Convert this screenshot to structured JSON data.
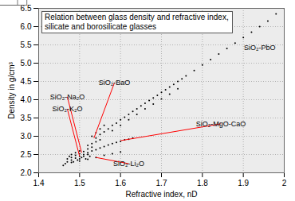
{
  "chart_data": {
    "type": "scatter",
    "title": "Relation between glass density and refractive index, silicate and borosilicate glasses",
    "x_label": "Refractive index, nD",
    "y_label": "Density in g/cm³",
    "color": "#000000",
    "xlim": [
      1.4,
      2
    ],
    "ylim": [
      2,
      6.5
    ],
    "xticks": [
      1.4,
      1.5,
      1.6,
      1.7,
      1.8,
      1.9,
      2
    ],
    "yticks": [
      {
        "value": 2,
        "label": "2.0"
      },
      2.5,
      {
        "value": 3,
        "label": "3.0"
      },
      3.5,
      {
        "value": 4,
        "label": "4.0"
      },
      4.5,
      {
        "value": 5,
        "label": "5.0"
      },
      5.5,
      {
        "value": 6,
        "label": "6.0"
      },
      6.5
    ],
    "grid": true,
    "x": [
      1.55,
      1.56,
      1.57,
      1.58,
      1.59,
      1.6,
      1.61,
      1.62,
      1.63,
      1.64,
      1.65,
      1.66,
      1.67,
      1.68,
      1.69,
      1.7,
      1.71,
      1.72,
      1.73,
      1.74,
      1.75,
      1.76,
      1.78,
      1.8,
      1.82,
      1.84,
      1.86,
      1.88,
      1.9,
      1.92,
      1.94,
      1.96,
      1.98,
      2.0,
      1.58,
      1.6,
      1.62,
      1.64,
      1.66,
      1.68,
      1.7,
      1.72,
      1.74,
      1.5,
      1.51,
      1.52,
      1.53,
      1.54,
      1.55,
      1.56,
      1.57,
      1.58,
      1.59,
      1.6,
      1.61,
      1.62,
      1.63,
      1.48,
      1.5,
      1.52,
      1.54,
      1.56,
      1.58,
      1.6,
      1.46,
      1.465,
      1.47,
      1.47,
      1.48,
      1.48,
      1.49,
      1.49,
      1.5,
      1.5,
      1.51,
      1.51,
      1.52,
      1.52,
      1.53,
      1.53,
      1.54,
      1.54,
      1.55,
      1.52,
      1.5,
      1.49,
      1.48,
      1.475,
      1.485,
      1.495,
      1.505,
      1.515,
      1.525,
      1.53,
      1.54,
      1.55,
      1.56
    ],
    "values": [
      3.05,
      3.12,
      3.2,
      3.3,
      3.36,
      3.45,
      3.52,
      3.6,
      3.68,
      3.75,
      3.83,
      3.9,
      3.98,
      4.05,
      4.12,
      4.2,
      4.27,
      4.35,
      4.42,
      4.5,
      4.57,
      4.65,
      4.8,
      4.95,
      5.1,
      5.25,
      5.4,
      5.55,
      5.7,
      5.85,
      6.0,
      6.15,
      6.35,
      6.5,
      3.15,
      3.3,
      3.45,
      3.6,
      3.75,
      3.88,
      4.02,
      4.15,
      4.3,
      2.45,
      2.5,
      2.55,
      2.6,
      2.63,
      2.68,
      2.72,
      2.76,
      2.8,
      2.83,
      2.86,
      2.9,
      2.92,
      2.95,
      2.28,
      2.32,
      2.37,
      2.42,
      2.48,
      2.52,
      2.57,
      2.2,
      2.25,
      2.3,
      2.38,
      2.35,
      2.42,
      2.4,
      2.48,
      2.38,
      2.52,
      2.45,
      2.58,
      2.5,
      2.65,
      2.7,
      2.8,
      2.85,
      2.95,
      2.9,
      2.75,
      2.6,
      2.55,
      2.5,
      2.45,
      2.3,
      2.35,
      2.42,
      2.38,
      2.45,
      3.0,
      3.1,
      3.2,
      3.3
    ],
    "annotations": [
      {
        "text": "SiO₂-PbO",
        "x": 1.94,
        "y": 5.42
      },
      {
        "text": "SiO₂-BaO",
        "x": 1.585,
        "y": 4.46,
        "x_to": 1.535,
        "y_to": 2.95
      },
      {
        "text": "SiO₂-Na₂O",
        "x": 1.47,
        "y": 4.08,
        "x_to": 1.505,
        "y_to": 2.55
      },
      {
        "text": "SiO₂-K₂O",
        "x": 1.47,
        "y": 3.75,
        "x_to": 1.5,
        "y_to": 2.45
      },
      {
        "text": "SiO₂-MgO-CaO",
        "x": 1.845,
        "y": 3.34,
        "x_to": 1.6,
        "y_to": 2.88
      },
      {
        "text": "SiO₂-Li₂O",
        "x": 1.62,
        "y": 2.25,
        "x_to": 1.54,
        "y_to": 2.42
      }
    ]
  }
}
